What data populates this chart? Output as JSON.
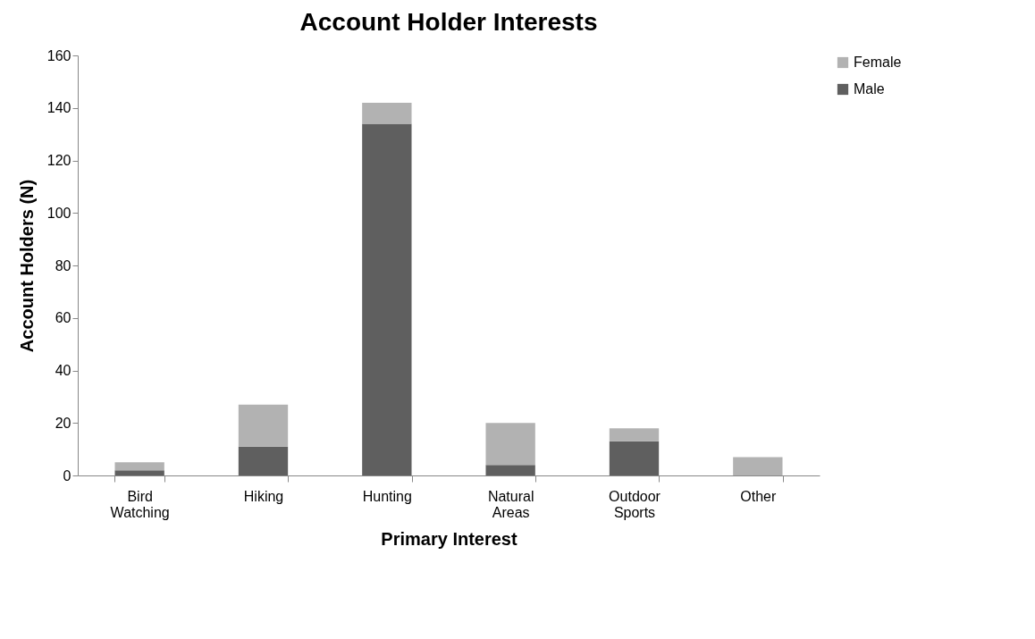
{
  "chart_data": {
    "type": "bar",
    "title": "Account Holder Interests",
    "xlabel": "Primary Interest",
    "ylabel": "Account Holders (N)",
    "categories": [
      "Bird Watching",
      "Hiking",
      "Hunting",
      "Natural Areas",
      "Outdoor Sports",
      "Other"
    ],
    "series": [
      {
        "name": "Male",
        "color": "#5f5f5f",
        "values": [
          2,
          11,
          134,
          4,
          13,
          0
        ]
      },
      {
        "name": "Female",
        "color": "#b2b2b2",
        "values": [
          3,
          16,
          8,
          16,
          5,
          7
        ]
      }
    ],
    "stacked": true,
    "ylim": [
      0,
      160
    ],
    "yticks": [
      0,
      20,
      40,
      60,
      80,
      100,
      120,
      140,
      160
    ],
    "grid": false,
    "legend": "right"
  }
}
